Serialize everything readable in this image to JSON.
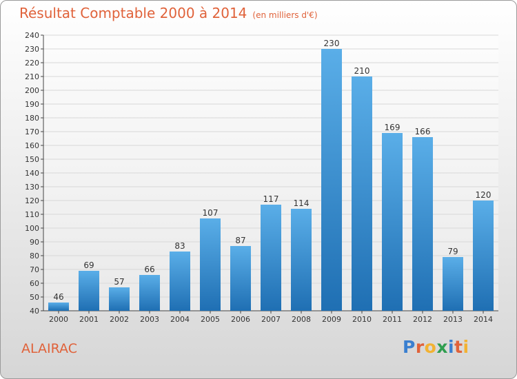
{
  "title": "Résultat Comptable 2000 à 2014",
  "subtitle": "(en milliers d'€)",
  "commune": "ALAIRAC",
  "brand": {
    "letters": [
      "P",
      "r",
      "o",
      "x",
      "i",
      "t",
      "i"
    ],
    "colors": [
      "#3a7fd0",
      "#e0623a",
      "#f2b233",
      "#2f9e4f",
      "#3a7fd0",
      "#e0623a",
      "#f2b233"
    ]
  },
  "colors": {
    "bar_top": "#5aaee8",
    "bar_bottom": "#1f6fb3",
    "grid": "#d8d8d8",
    "axis": "#444444"
  },
  "chart_data": {
    "type": "bar",
    "categories": [
      "2000",
      "2001",
      "2002",
      "2003",
      "2004",
      "2005",
      "2006",
      "2007",
      "2008",
      "2009",
      "2010",
      "2011",
      "2012",
      "2013",
      "2014"
    ],
    "values": [
      46,
      69,
      57,
      66,
      83,
      107,
      87,
      117,
      114,
      230,
      210,
      169,
      166,
      79,
      120
    ],
    "title": "Résultat Comptable 2000 à 2014",
    "ylim": [
      40,
      240
    ],
    "ytick_step": 10,
    "grid": true
  }
}
